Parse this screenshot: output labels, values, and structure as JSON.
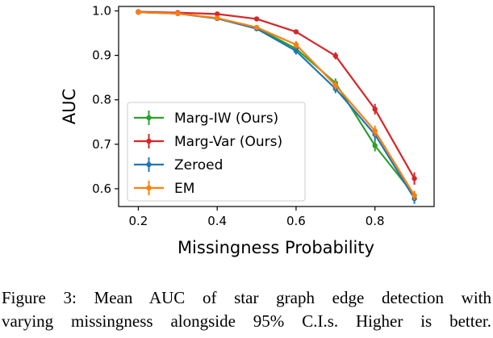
{
  "chart_data": {
    "type": "line",
    "title": "",
    "xlabel": "Missingness Probability",
    "ylabel": "AUC",
    "xlim": [
      0.15,
      0.95
    ],
    "ylim": [
      0.56,
      1.01
    ],
    "xticks": [
      0.2,
      0.4,
      0.6,
      0.8
    ],
    "xtick_labels": [
      "0.2",
      "0.4",
      "0.6",
      "0.8"
    ],
    "yticks": [
      0.6,
      0.7,
      0.8,
      0.9,
      1.0
    ],
    "ytick_labels": [
      "0.6",
      "0.7",
      "0.8",
      "0.9",
      "1.0"
    ],
    "grid": false,
    "legend_position": "lower-left",
    "x": [
      0.2,
      0.3,
      0.4,
      0.5,
      0.6,
      0.7,
      0.8,
      0.9
    ],
    "series": [
      {
        "name": "Marg-IW (Ours)",
        "color": "#2ca02c",
        "values": [
          0.997,
          0.994,
          0.983,
          0.962,
          0.915,
          0.838,
          0.697,
          0.585
        ],
        "ci": [
          0.003,
          0.003,
          0.004,
          0.005,
          0.008,
          0.01,
          0.013,
          0.01
        ]
      },
      {
        "name": "Marg-Var (Ours)",
        "color": "#d62728",
        "values": [
          0.998,
          0.996,
          0.993,
          0.982,
          0.953,
          0.899,
          0.779,
          0.623
        ],
        "ci": [
          0.002,
          0.002,
          0.003,
          0.003,
          0.005,
          0.008,
          0.012,
          0.014
        ]
      },
      {
        "name": "Zeroed",
        "color": "#1f77b4",
        "values": [
          0.997,
          0.994,
          0.983,
          0.96,
          0.91,
          0.825,
          0.722,
          0.578
        ],
        "ci": [
          0.003,
          0.003,
          0.004,
          0.005,
          0.008,
          0.01,
          0.013,
          0.012
        ]
      },
      {
        "name": "EM",
        "color": "#ff7f0e",
        "values": [
          0.997,
          0.994,
          0.984,
          0.963,
          0.924,
          0.833,
          0.73,
          0.585
        ],
        "ci": [
          0.003,
          0.003,
          0.004,
          0.005,
          0.008,
          0.01,
          0.012,
          0.01
        ]
      }
    ]
  },
  "caption": {
    "line1": "Figure 3: Mean AUC of star graph edge detection with",
    "line2": "varying missingness alongside 95% C.I.s. Higher is better."
  }
}
